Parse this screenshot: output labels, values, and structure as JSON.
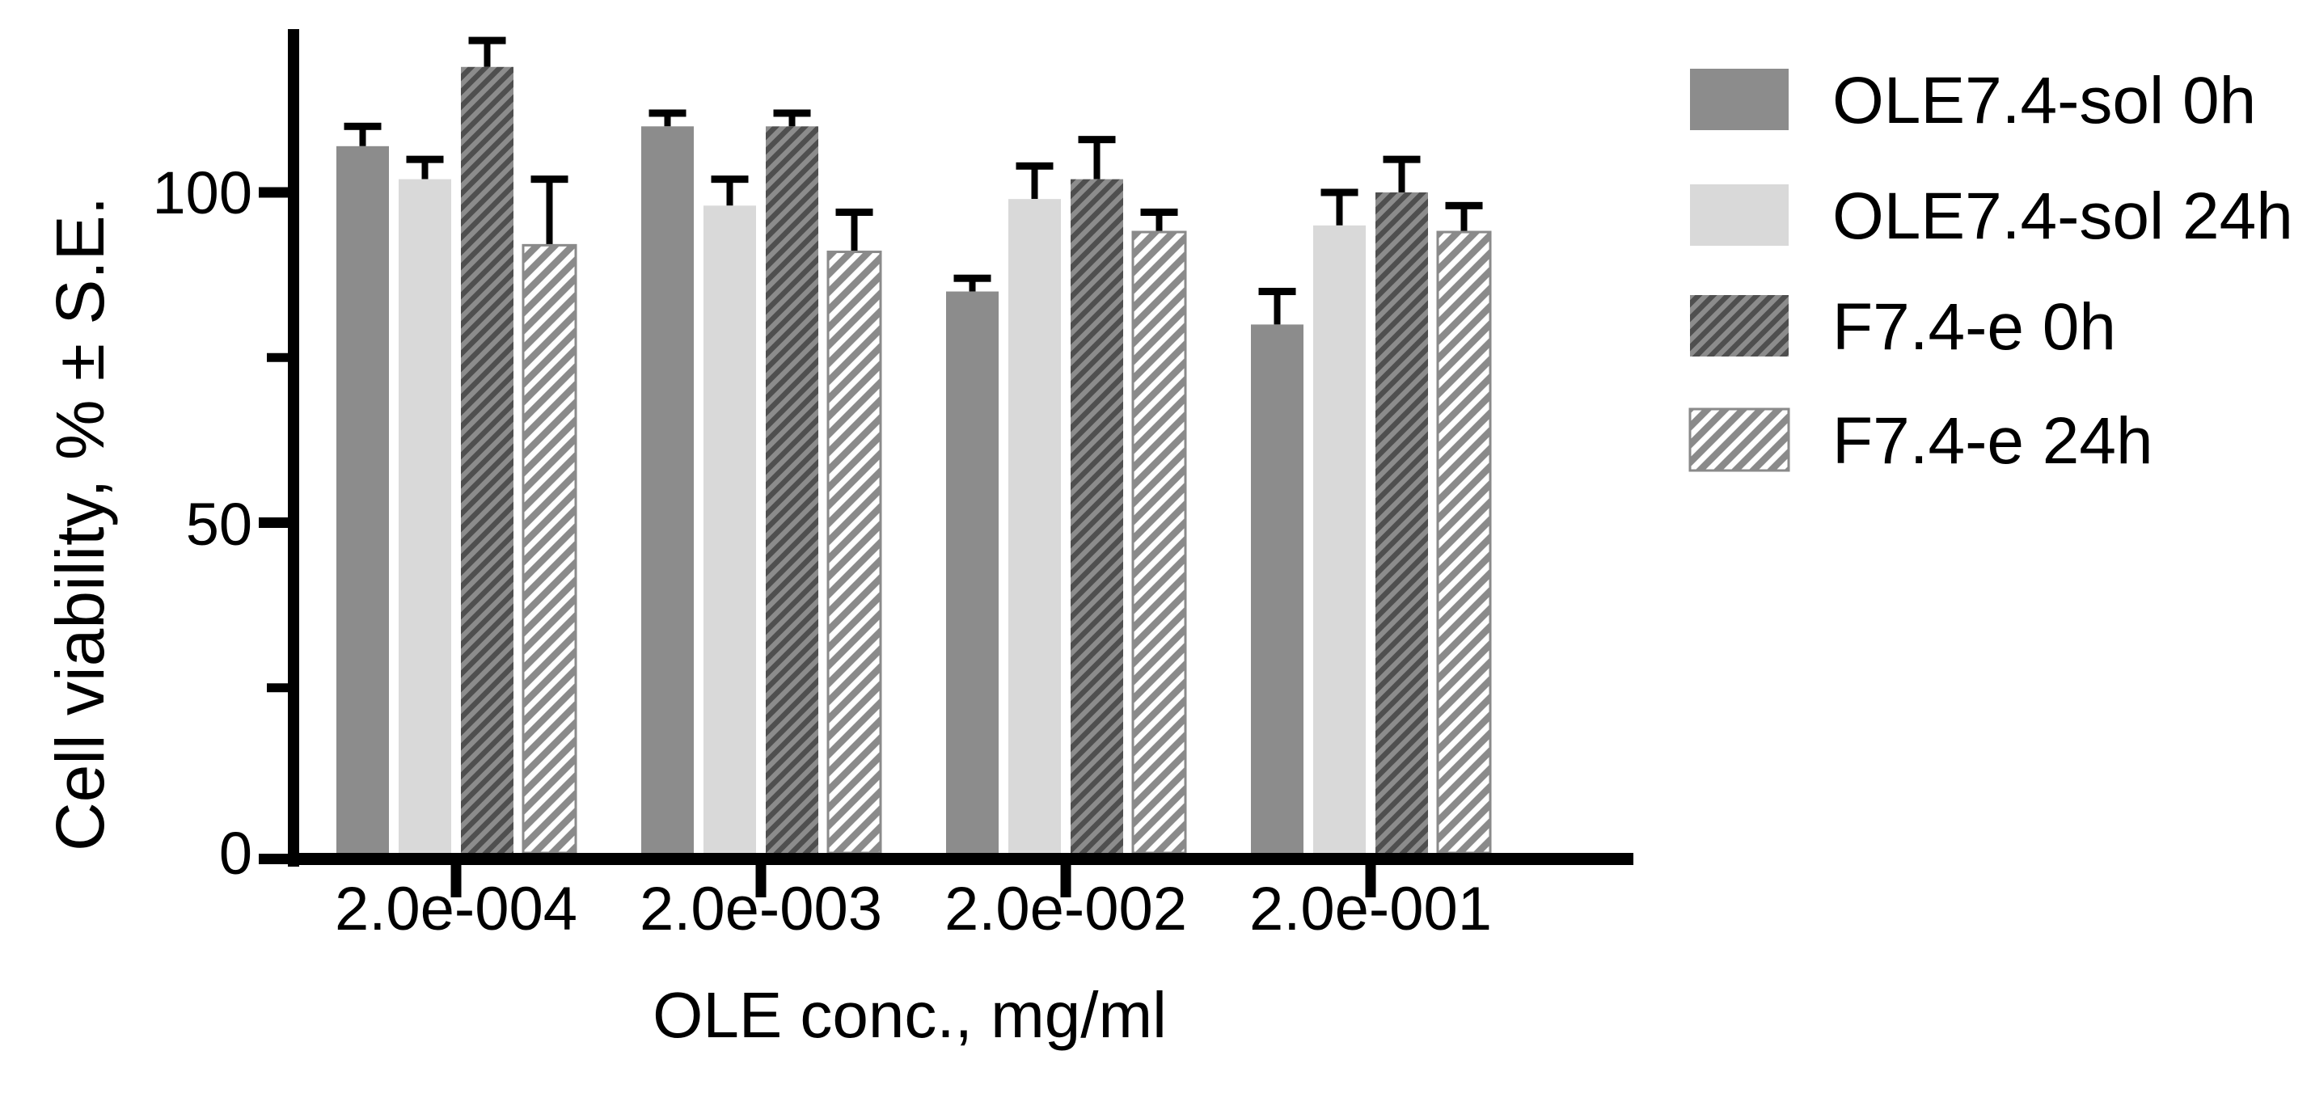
{
  "chart_data": {
    "type": "bar",
    "title": "",
    "xlabel": "OLE conc., mg/ml",
    "ylabel": "Cell viability, % ± S.E.",
    "categories": [
      "2.0e-004",
      "2.0e-003",
      "2.0e-002",
      "2.0e-001"
    ],
    "series": [
      {
        "name": "OLE7.4-sol 0h",
        "style": "solid-dark",
        "values": [
          107,
          110,
          85,
          80
        ],
        "errors": [
          3,
          2,
          2,
          5
        ]
      },
      {
        "name": "OLE7.4-sol 24h",
        "style": "solid-light",
        "values": [
          102,
          98,
          99,
          95
        ],
        "errors": [
          3,
          4,
          5,
          5
        ]
      },
      {
        "name": "F7.4-e 0h",
        "style": "hatch-dark",
        "values": [
          119,
          110,
          102,
          100
        ],
        "errors": [
          4,
          2,
          6,
          5
        ]
      },
      {
        "name": "F7.4-e 24h",
        "style": "hatch-light",
        "values": [
          92,
          91,
          94,
          94
        ],
        "errors": [
          10,
          6,
          3,
          4
        ]
      }
    ],
    "ylim": [
      0,
      125
    ],
    "yticks": [
      0,
      50,
      100
    ],
    "ytick_labels": [
      "0",
      "50",
      "100"
    ],
    "yticks_minor": [
      25,
      75
    ],
    "error_bars": "upper only, with caps",
    "grid": false,
    "legend_position": "right",
    "palette": {
      "solid_dark": "#8c8c8c",
      "solid_light": "#d9d9d9",
      "hatch_dark_bg": "#8c8c8c",
      "hatch_dark_line": "#4f4f4f",
      "hatch_light_bg": "#ffffff",
      "hatch_light_line": "#8a8a8a",
      "axis": "#000000",
      "error_bar": "#000000",
      "text": "#000000"
    }
  }
}
